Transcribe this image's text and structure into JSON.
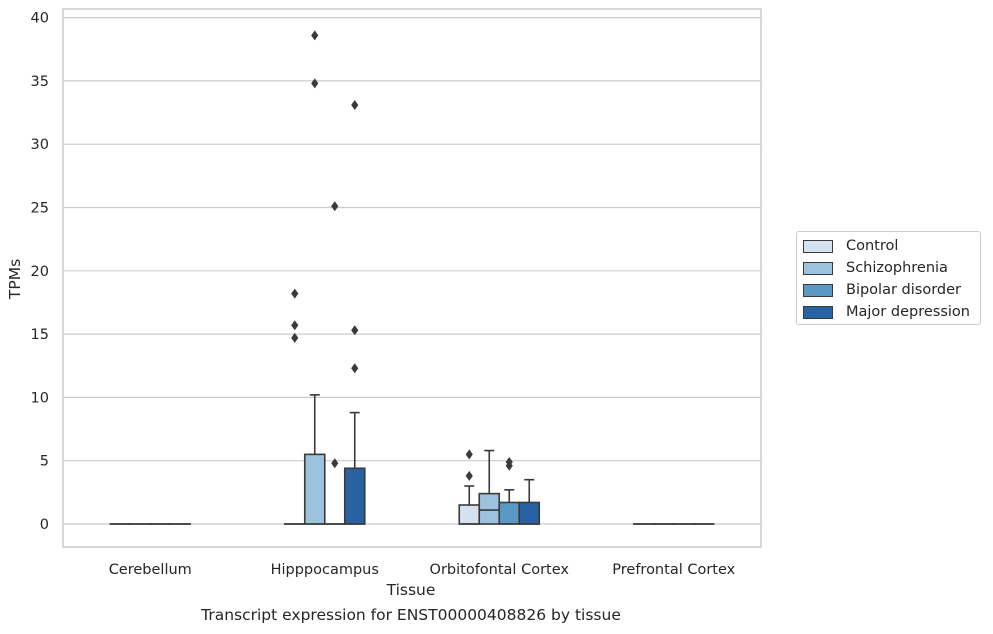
{
  "chart_data": {
    "type": "box",
    "title": "Transcript expression for ENST00000408826 by tissue",
    "xlabel": "Tissue",
    "ylabel": "TPMs",
    "ylim": [
      -1.8,
      40.5
    ],
    "yticks": [
      0,
      5,
      10,
      15,
      20,
      25,
      30,
      35,
      40
    ],
    "ytick_labels": [
      "0",
      "5",
      "10",
      "15",
      "20",
      "25",
      "30",
      "35",
      "40"
    ],
    "grid": "horizontal",
    "legend_position": "right-center",
    "categories": [
      "Cerebellum",
      "Hipppocampus",
      "Orbitofontal Cortex",
      "Prefrontal Cortex"
    ],
    "series": [
      {
        "name": "Control",
        "color": "#d4e1ef",
        "boxes": [
          {
            "q1": 0,
            "median": 0,
            "q3": 0,
            "whislo": 0,
            "whishi": 0,
            "fliers": []
          },
          {
            "q1": 0,
            "median": 0,
            "q3": 0,
            "whislo": 0,
            "whishi": 0,
            "fliers": [
              18.2,
              15.7,
              14.7
            ]
          },
          {
            "q1": 0,
            "median": 0,
            "q3": 1.5,
            "whislo": 0,
            "whishi": 3.0,
            "fliers": [
              5.5,
              3.8
            ]
          },
          {
            "q1": 0,
            "median": 0,
            "q3": 0,
            "whislo": 0,
            "whishi": 0,
            "fliers": []
          }
        ]
      },
      {
        "name": "Schizophrenia",
        "color": "#9cc2dd",
        "boxes": [
          {
            "q1": 0,
            "median": 0,
            "q3": 0,
            "whislo": 0,
            "whishi": 0,
            "fliers": []
          },
          {
            "q1": 0,
            "median": 0,
            "q3": 5.5,
            "whislo": 0,
            "whishi": 10.2,
            "fliers": [
              38.6,
              34.8
            ]
          },
          {
            "q1": 0,
            "median": 1.1,
            "q3": 2.4,
            "whislo": 0,
            "whishi": 5.8,
            "fliers": []
          },
          {
            "q1": 0,
            "median": 0,
            "q3": 0,
            "whislo": 0,
            "whishi": 0,
            "fliers": []
          }
        ]
      },
      {
        "name": "Bipolar disorder",
        "color": "#5a99c6",
        "boxes": [
          {
            "q1": 0,
            "median": 0,
            "q3": 0,
            "whislo": 0,
            "whishi": 0,
            "fliers": []
          },
          {
            "q1": 0,
            "median": 0,
            "q3": 0,
            "whislo": 0,
            "whishi": 0,
            "fliers": [
              25.1,
              4.8
            ]
          },
          {
            "q1": 0,
            "median": 0,
            "q3": 1.7,
            "whislo": 0,
            "whishi": 2.7,
            "fliers": [
              4.9,
              4.6
            ]
          },
          {
            "q1": 0,
            "median": 0,
            "q3": 0,
            "whislo": 0,
            "whishi": 0,
            "fliers": []
          }
        ]
      },
      {
        "name": "Major depression",
        "color": "#2862a3",
        "boxes": [
          {
            "q1": 0,
            "median": 0,
            "q3": 0,
            "whislo": 0,
            "whishi": 0,
            "fliers": []
          },
          {
            "q1": 0,
            "median": 0,
            "q3": 4.4,
            "whislo": 0,
            "whishi": 8.8,
            "fliers": [
              33.1,
              15.3,
              12.3
            ]
          },
          {
            "q1": 0,
            "median": 0,
            "q3": 1.7,
            "whislo": 0,
            "whishi": 3.5,
            "fliers": []
          },
          {
            "q1": 0,
            "median": 0,
            "q3": 0,
            "whislo": 0,
            "whishi": 0,
            "fliers": []
          }
        ]
      }
    ]
  }
}
